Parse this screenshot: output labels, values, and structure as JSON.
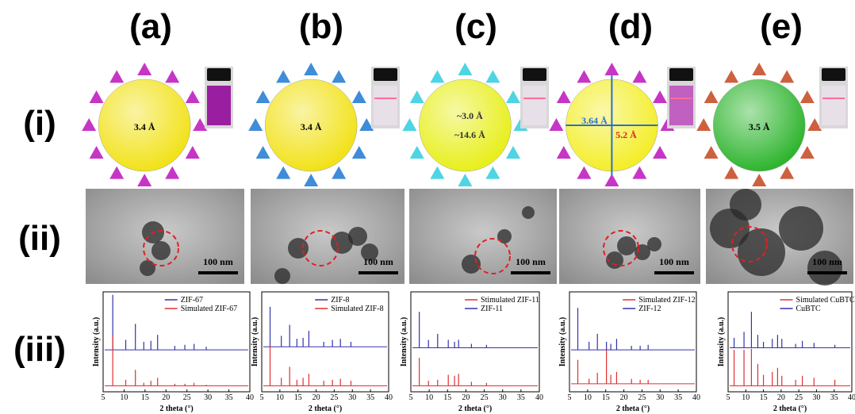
{
  "column_labels": [
    "(a)",
    "(b)",
    "(c)",
    "(d)",
    "(e)"
  ],
  "row_labels": [
    "(i)",
    "(ii)",
    "(iii)"
  ],
  "structures": [
    {
      "sphere_color": "#f2e21a",
      "pore_labels": [
        "3.4 Å"
      ]
    },
    {
      "sphere_color": "#f2e21a",
      "pore_labels": [
        "3.4 Å"
      ]
    },
    {
      "sphere_color": "#e8ef1c",
      "pore_labels": [
        "~3.0 Å",
        "~14.6 Å"
      ]
    },
    {
      "sphere_color": "#f4ee2a",
      "pore_labels": [
        "3.64 Å",
        "5.2 Å"
      ]
    },
    {
      "sphere_color": "#2fb52f",
      "pore_labels": [
        "3.5 Å"
      ]
    }
  ],
  "tem": [
    {
      "scale_bar": "100 nm"
    },
    {
      "scale_bar": "100 nm"
    },
    {
      "scale_bar": "100 nm"
    },
    {
      "scale_bar": "100 nm"
    },
    {
      "scale_bar": "100 nm"
    }
  ],
  "xrd": [
    {
      "type": "stem",
      "x_label": "2 theta (°)",
      "y_label": "Intensity (a.u.)",
      "xlim": [
        5,
        40
      ],
      "ylim": [
        0,
        100
      ],
      "xticks": [
        5,
        10,
        15,
        20,
        25,
        30,
        35,
        40
      ],
      "series": [
        {
          "name": "ZIF-67",
          "color": "#3333aa",
          "baseline": 42,
          "x": [
            7.3,
            10.4,
            12.7,
            14.7,
            16.4,
            18.0,
            22.1,
            24.5,
            26.7,
            29.6
          ],
          "values": [
            97,
            52,
            68,
            50,
            51,
            57,
            46,
            47,
            48,
            45
          ]
        },
        {
          "name": "Simulated ZIF-67",
          "color": "#e03030",
          "baseline": 6,
          "x": [
            7.3,
            10.4,
            12.7,
            14.7,
            16.4,
            18.0,
            22.1,
            24.5,
            26.7,
            29.6
          ],
          "values": [
            56,
            12,
            22,
            9,
            11,
            14,
            8,
            8,
            9,
            7
          ]
        }
      ]
    },
    {
      "type": "stem",
      "x_label": "2 theta (°)",
      "y_label": "Intensity (a.u.)",
      "xlim": [
        5,
        40
      ],
      "ylim": [
        0,
        100
      ],
      "xticks": [
        5,
        10,
        15,
        20,
        25,
        30,
        35,
        40
      ],
      "series": [
        {
          "name": "ZIF-8",
          "color": "#3333aa",
          "baseline": 45,
          "x": [
            7.3,
            10.4,
            12.7,
            14.7,
            16.4,
            18.0,
            22.1,
            24.5,
            26.7,
            29.6
          ],
          "values": [
            85,
            56,
            67,
            53,
            54,
            61,
            50,
            52,
            53,
            50
          ]
        },
        {
          "name": "Simulated ZIF-8",
          "color": "#e03030",
          "baseline": 6,
          "x": [
            7.3,
            10.4,
            12.7,
            14.7,
            16.4,
            18.0,
            22.1,
            24.5,
            26.7,
            29.6
          ],
          "values": [
            46,
            14,
            25,
            12,
            14,
            18,
            11,
            12,
            13,
            11
          ]
        }
      ]
    },
    {
      "type": "stem",
      "x_label": "2 theta (°)",
      "y_label": "Intensity (a.u.)",
      "xlim": [
        5,
        40
      ],
      "ylim": [
        0,
        100
      ],
      "xticks": [
        5,
        10,
        15,
        20,
        25,
        30,
        35,
        40
      ],
      "series": [
        {
          "name": "Stimulated ZIF-11",
          "color": "#e03030",
          "baseline": 6,
          "x": [
            7.3,
            9.8,
            12.3,
            15.2,
            16.9,
            18.0,
            21.5,
            25.6
          ],
          "values": [
            34,
            11,
            12,
            17,
            16,
            18,
            10,
            9
          ]
        },
        {
          "name": "ZIF-11",
          "color": "#3333aa",
          "baseline": 44,
          "x": [
            7.3,
            9.8,
            12.3,
            15.2,
            16.9,
            18.0,
            21.5,
            25.6
          ],
          "values": [
            80,
            52,
            58,
            52,
            50,
            52,
            48,
            47
          ]
        }
      ]
    },
    {
      "type": "stem",
      "x_label": "2 theta (°)",
      "y_label": "Intensity (a.u.)",
      "xlim": [
        5,
        40
      ],
      "ylim": [
        0,
        100
      ],
      "xticks": [
        5,
        10,
        15,
        20,
        25,
        30,
        35,
        40
      ],
      "series": [
        {
          "name": "Simulated ZIF-12",
          "color": "#e03030",
          "baseline": 8,
          "x": [
            7.3,
            10.4,
            12.7,
            15.2,
            16.4,
            18.0,
            22.1,
            24.5,
            26.7
          ],
          "values": [
            32,
            13,
            19,
            42,
            17,
            20,
            13,
            12,
            12
          ]
        },
        {
          "name": "ZIF-12",
          "color": "#3333aa",
          "baseline": 42,
          "x": [
            7.3,
            10.4,
            12.7,
            15.2,
            16.4,
            18.0,
            22.1,
            24.5,
            26.7
          ],
          "values": [
            84,
            50,
            58,
            50,
            48,
            53,
            46,
            46,
            47
          ]
        }
      ]
    },
    {
      "type": "stem",
      "x_label": "2 theta (°)",
      "y_label": "Intensity (a.u.)",
      "xlim": [
        5,
        40
      ],
      "ylim": [
        0,
        100
      ],
      "xticks": [
        5,
        10,
        15,
        20,
        25,
        30,
        35,
        40
      ],
      "series": [
        {
          "name": "Simulated CuBTC",
          "color": "#e03030",
          "baseline": 6,
          "x": [
            6.7,
            9.5,
            11.6,
            13.4,
            15.0,
            17.5,
            19.0,
            20.2,
            24.1,
            26.0,
            29.3,
            35.2
          ],
          "values": [
            42,
            42,
            43,
            28,
            17,
            20,
            24,
            16,
            12,
            16,
            14,
            12
          ]
        },
        {
          "name": "CuBTC",
          "color": "#3333aa",
          "baseline": 44,
          "x": [
            6.7,
            9.5,
            11.6,
            13.4,
            15.0,
            17.5,
            19.0,
            20.2,
            24.1,
            26.0,
            29.3,
            35.2
          ],
          "values": [
            54,
            60,
            80,
            57,
            50,
            53,
            57,
            53,
            48,
            51,
            49,
            47
          ]
        }
      ]
    }
  ]
}
